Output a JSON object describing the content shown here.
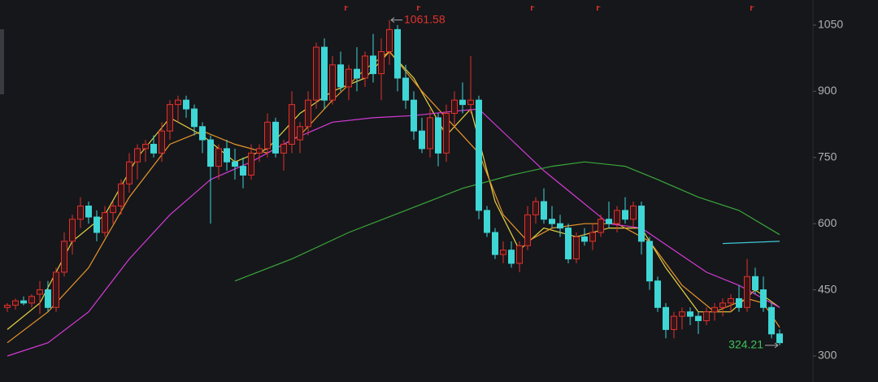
{
  "chart_data": {
    "type": "candlestick",
    "ohlc": [
      [
        410,
        420,
        400,
        415
      ],
      [
        415,
        430,
        405,
        425
      ],
      [
        425,
        435,
        415,
        420
      ],
      [
        420,
        440,
        410,
        435
      ],
      [
        440,
        470,
        395,
        450
      ],
      [
        450,
        470,
        400,
        410
      ],
      [
        410,
        500,
        400,
        490
      ],
      [
        490,
        580,
        480,
        560
      ],
      [
        560,
        620,
        530,
        610
      ],
      [
        610,
        660,
        590,
        640
      ],
      [
        640,
        650,
        600,
        615
      ],
      [
        615,
        630,
        560,
        580
      ],
      [
        580,
        640,
        570,
        625
      ],
      [
        625,
        650,
        600,
        640
      ],
      [
        640,
        700,
        620,
        690
      ],
      [
        690,
        760,
        670,
        740
      ],
      [
        740,
        780,
        700,
        770
      ],
      [
        770,
        790,
        740,
        780
      ],
      [
        780,
        800,
        750,
        760
      ],
      [
        760,
        830,
        740,
        810
      ],
      [
        810,
        880,
        790,
        870
      ],
      [
        870,
        890,
        830,
        880
      ],
      [
        880,
        890,
        840,
        860
      ],
      [
        860,
        870,
        800,
        820
      ],
      [
        820,
        830,
        760,
        790
      ],
      [
        790,
        800,
        600,
        730
      ],
      [
        730,
        780,
        700,
        770
      ],
      [
        770,
        790,
        720,
        740
      ],
      [
        740,
        770,
        700,
        730
      ],
      [
        730,
        750,
        680,
        710
      ],
      [
        710,
        780,
        700,
        760
      ],
      [
        760,
        780,
        740,
        770
      ],
      [
        770,
        850,
        750,
        830
      ],
      [
        830,
        840,
        750,
        760
      ],
      [
        760,
        790,
        720,
        780
      ],
      [
        780,
        900,
        760,
        870
      ],
      [
        790,
        830,
        760,
        820
      ],
      [
        820,
        900,
        800,
        880
      ],
      [
        880,
        1010,
        860,
        1000
      ],
      [
        1000,
        1020,
        860,
        880
      ],
      [
        880,
        980,
        870,
        960
      ],
      [
        960,
        990,
        900,
        910
      ],
      [
        910,
        960,
        880,
        950
      ],
      [
        950,
        1000,
        900,
        930
      ],
      [
        930,
        990,
        910,
        980
      ],
      [
        980,
        1030,
        920,
        940
      ],
      [
        940,
        1020,
        880,
        990
      ],
      [
        990,
        1061.58,
        960,
        1040
      ],
      [
        1040,
        1050,
        900,
        930
      ],
      [
        930,
        960,
        860,
        880
      ],
      [
        880,
        900,
        790,
        810
      ],
      [
        810,
        840,
        760,
        770
      ],
      [
        770,
        860,
        750,
        840
      ],
      [
        840,
        850,
        730,
        760
      ],
      [
        760,
        870,
        740,
        850
      ],
      [
        850,
        900,
        820,
        880
      ],
      [
        880,
        920,
        850,
        870
      ],
      [
        870,
        980,
        850,
        880
      ],
      [
        880,
        890,
        610,
        630
      ],
      [
        630,
        640,
        570,
        580
      ],
      [
        580,
        590,
        520,
        530
      ],
      [
        530,
        560,
        510,
        540
      ],
      [
        540,
        560,
        500,
        510
      ],
      [
        510,
        560,
        490,
        550
      ],
      [
        550,
        640,
        540,
        620
      ],
      [
        620,
        660,
        600,
        650
      ],
      [
        650,
        680,
        600,
        610
      ],
      [
        610,
        640,
        590,
        600
      ],
      [
        600,
        620,
        570,
        590
      ],
      [
        590,
        600,
        510,
        520
      ],
      [
        520,
        580,
        510,
        570
      ],
      [
        570,
        590,
        550,
        560
      ],
      [
        560,
        600,
        540,
        580
      ],
      [
        580,
        620,
        570,
        610
      ],
      [
        610,
        650,
        590,
        600
      ],
      [
        600,
        640,
        580,
        630
      ],
      [
        630,
        660,
        600,
        610
      ],
      [
        610,
        650,
        590,
        640
      ],
      [
        640,
        650,
        530,
        560
      ],
      [
        560,
        570,
        450,
        470
      ],
      [
        470,
        480,
        400,
        410
      ],
      [
        410,
        420,
        340,
        360
      ],
      [
        360,
        400,
        340,
        390
      ],
      [
        390,
        410,
        360,
        400
      ],
      [
        400,
        410,
        370,
        390
      ],
      [
        390,
        400,
        350,
        380
      ],
      [
        380,
        410,
        370,
        400
      ],
      [
        400,
        420,
        380,
        410
      ],
      [
        410,
        430,
        390,
        420
      ],
      [
        420,
        440,
        400,
        430
      ],
      [
        430,
        460,
        400,
        410
      ],
      [
        410,
        520,
        400,
        480
      ],
      [
        480,
        500,
        440,
        450
      ],
      [
        450,
        480,
        400,
        410
      ],
      [
        410,
        420,
        340,
        350
      ],
      [
        350,
        360,
        324.21,
        330
      ]
    ],
    "up_color": "#e0322c",
    "down_color": "#3fd6d6",
    "lines": [
      {
        "color": "#e6d243",
        "x": [
          0,
          4,
          8,
          12,
          16,
          20,
          24,
          28,
          32,
          36,
          40,
          44,
          47,
          50,
          54,
          57,
          60,
          63,
          66,
          70,
          74,
          78,
          81,
          85,
          89,
          92,
          95
        ],
        "values": [
          360,
          420,
          560,
          620,
          750,
          840,
          800,
          740,
          770,
          850,
          900,
          930,
          990,
          930,
          800,
          860,
          650,
          540,
          590,
          570,
          590,
          590,
          500,
          400,
          400,
          450,
          410
        ]
      },
      {
        "color": "#e8962a",
        "x": [
          0,
          5,
          10,
          15,
          20,
          24,
          28,
          32,
          36,
          40,
          44,
          47,
          51,
          55,
          58,
          61,
          64,
          67,
          71,
          75,
          79,
          83,
          87,
          91,
          93,
          95
        ],
        "values": [
          330,
          400,
          500,
          660,
          780,
          810,
          780,
          760,
          800,
          880,
          950,
          990,
          900,
          820,
          760,
          620,
          560,
          590,
          600,
          600,
          560,
          460,
          400,
          430,
          420,
          365
        ]
      },
      {
        "color": "#d43bd6",
        "x": [
          0,
          5,
          10,
          15,
          20,
          25,
          30,
          35,
          40,
          45,
          50,
          55,
          58,
          62,
          66,
          70,
          74,
          78,
          82,
          86,
          90,
          95
        ],
        "values": [
          300,
          330,
          400,
          520,
          620,
          700,
          740,
          790,
          830,
          840,
          845,
          855,
          860,
          790,
          720,
          660,
          600,
          590,
          540,
          490,
          460,
          410
        ]
      },
      {
        "color": "#3aa83a",
        "x": [
          28,
          35,
          42,
          49,
          56,
          62,
          67,
          71,
          76,
          80,
          85,
          90,
          95
        ],
        "values": [
          470,
          520,
          580,
          630,
          680,
          710,
          730,
          740,
          730,
          700,
          660,
          630,
          575
        ]
      },
      {
        "color": "#3fc6d6",
        "x": [
          88,
          95
        ],
        "values": [
          555,
          560
        ]
      }
    ],
    "xlim": [
      -0.9,
      99.1
    ],
    "ylim": [
      241,
      1107
    ],
    "yticks": [
      300,
      450,
      600,
      750,
      900,
      1050
    ],
    "max_label": 1061.58,
    "min_label": 324.21
  }
}
